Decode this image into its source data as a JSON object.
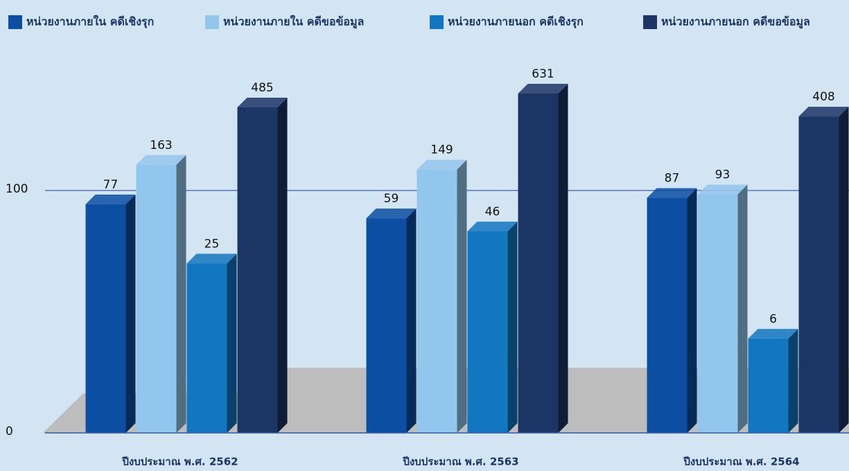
{
  "chart_data": {
    "type": "bar3d",
    "categories": [
      "ปีงบประมาณ พ.ศ. 2562",
      "ปีงบประมาณ พ.ศ. 2563",
      "ปีงบประมาณ พ.ศ. 2564"
    ],
    "series": [
      {
        "name": "หน่วยงานภายใน คดีเชิงรุก",
        "color": "#0b4ea2",
        "values": [
          77,
          59,
          87
        ]
      },
      {
        "name": "หน่วยงานภายใน คดีขอข้อมูล",
        "color": "#93c6ec",
        "values": [
          163,
          149,
          93
        ]
      },
      {
        "name": "หน่วยงานภายนอก คดีเชิงรุก",
        "color": "#1277c0",
        "values": [
          25,
          46,
          6
        ]
      },
      {
        "name": "หน่วยงานภายนอก คดีขอข้อมูล",
        "color": "#1b3564",
        "values": [
          485,
          631,
          408
        ]
      }
    ],
    "log_scale": true,
    "ylim": [
      1,
      1000
    ],
    "yticks": [
      {
        "value": 1,
        "label": "0"
      },
      100
    ],
    "grid": true,
    "legend": "top"
  }
}
